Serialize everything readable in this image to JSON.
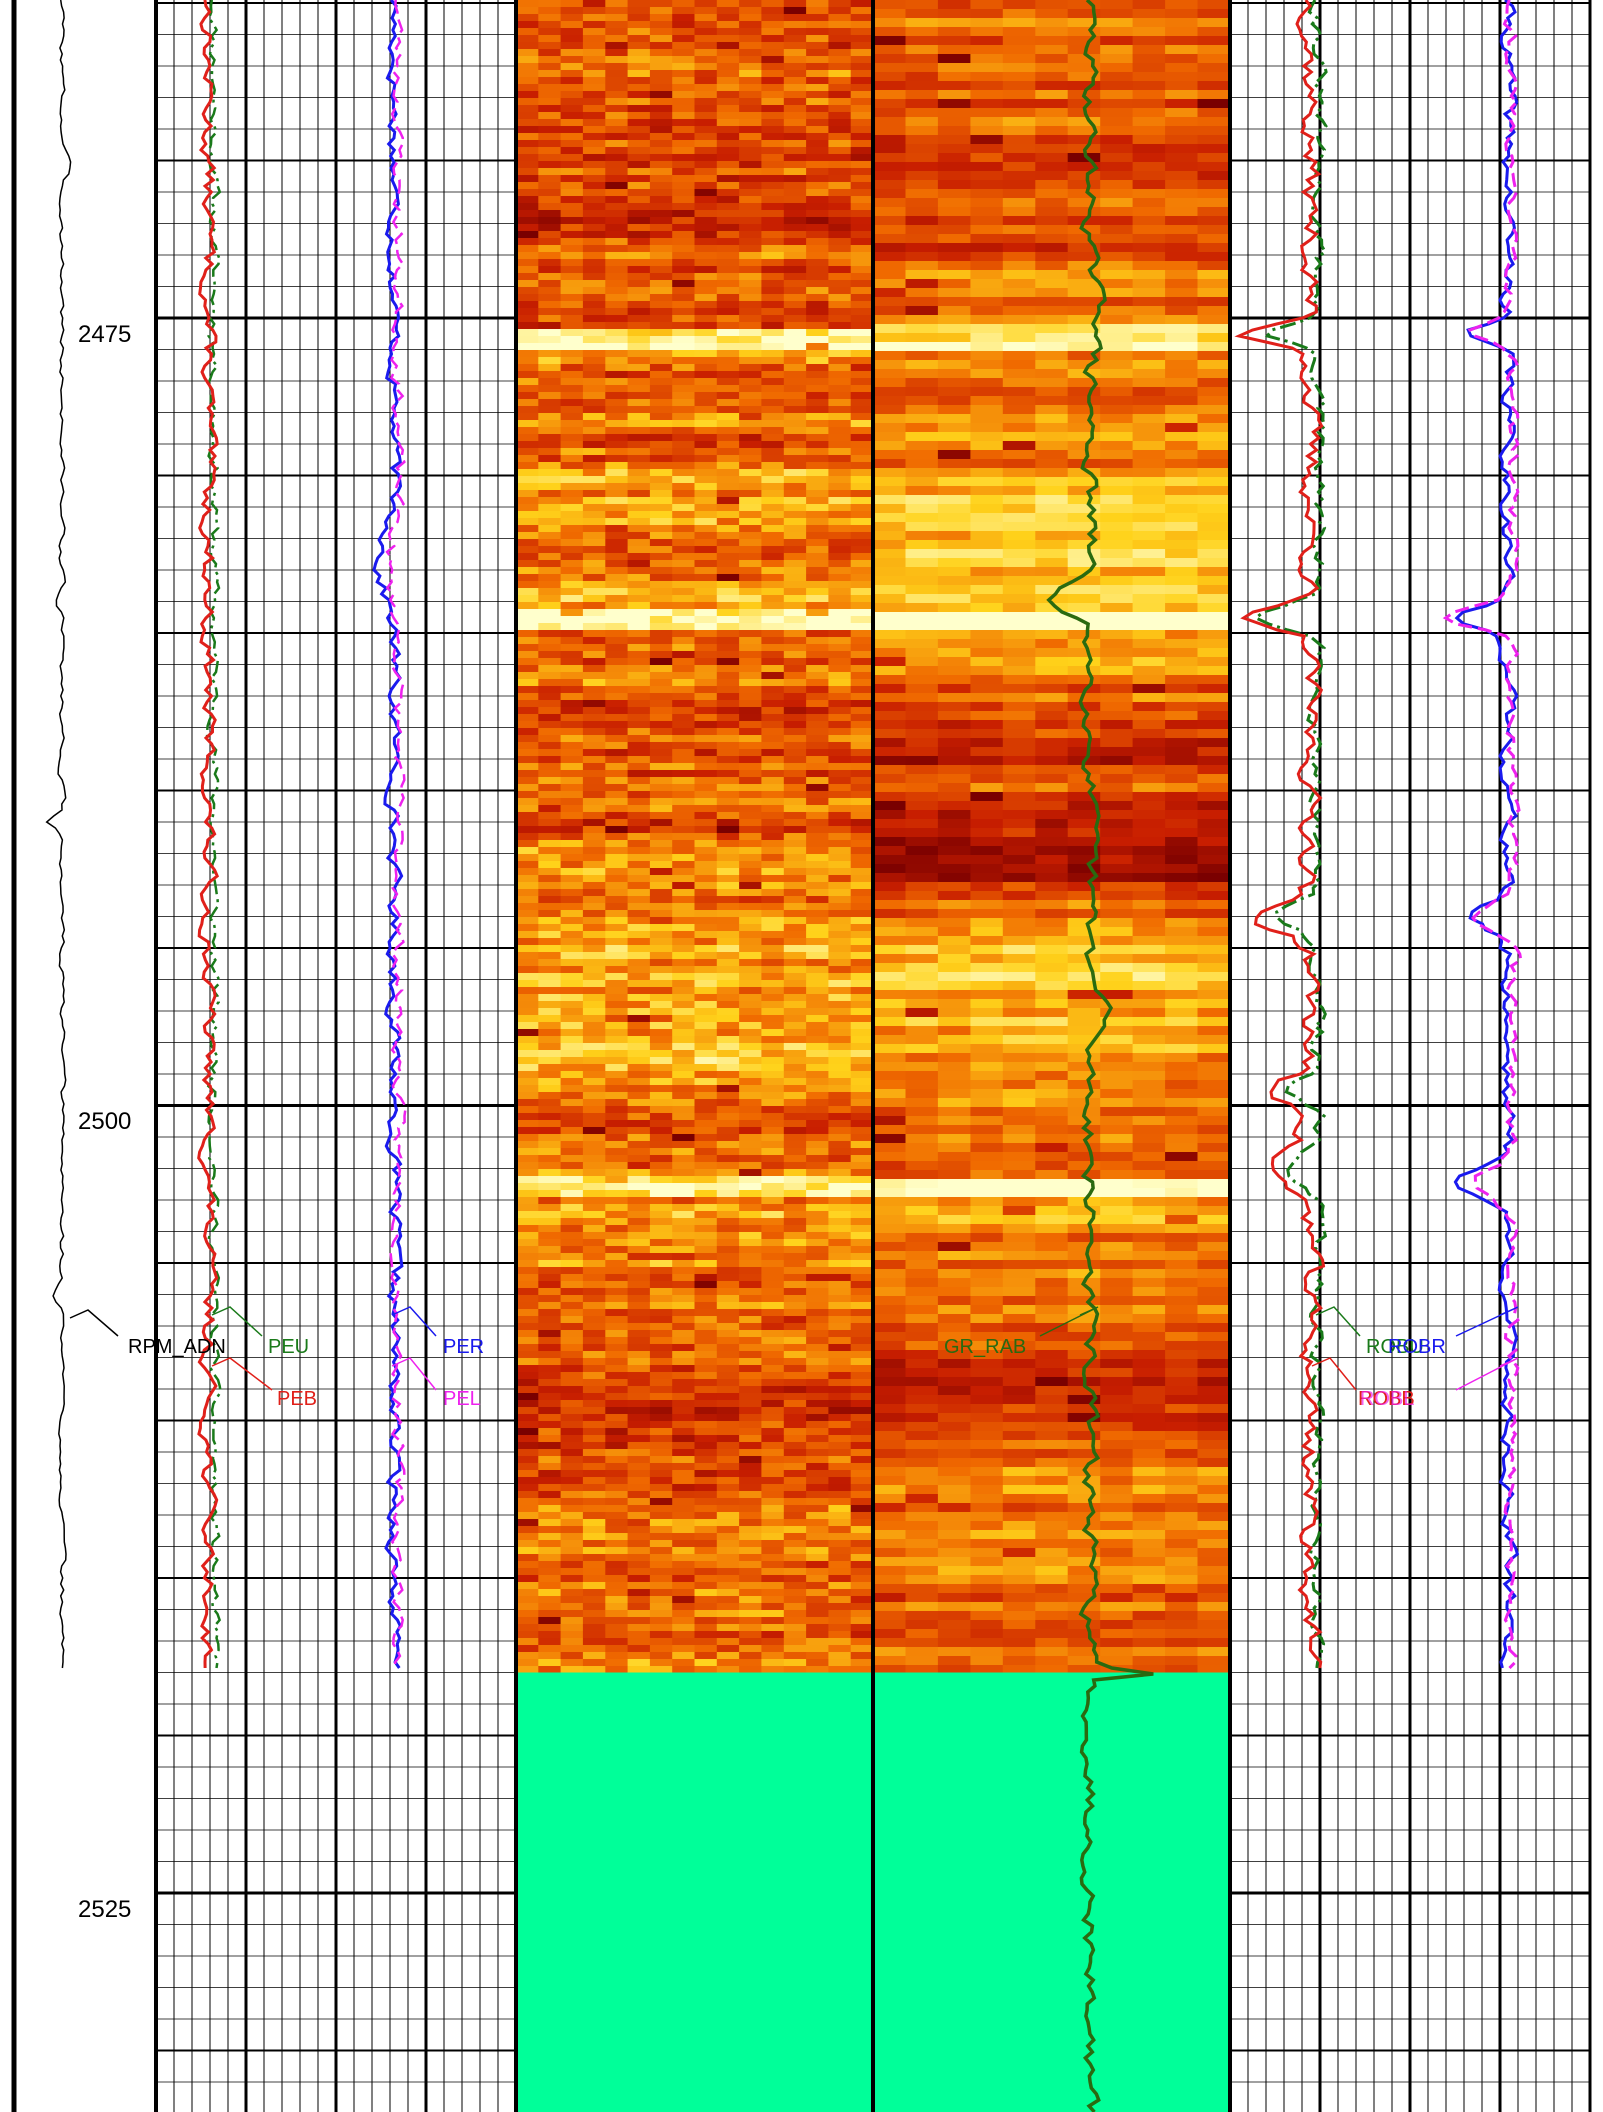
{
  "chart_data": {
    "type": "well-log",
    "depth_axis": {
      "tick_labels": [
        "2475",
        "2500",
        "2525"
      ],
      "major_ticks": [
        2475,
        2500,
        2525
      ],
      "minor_step": 5,
      "range": [
        2465,
        2531
      ]
    },
    "data_end_depth": 2518,
    "tracks": [
      {
        "name": "Track 1",
        "curves": [
          {
            "mnemonic": "RPM_ADN",
            "color": "#000000",
            "style": "solid"
          }
        ]
      },
      {
        "name": "Track 2",
        "curves": [
          {
            "mnemonic": "PEU",
            "color": "#1a7a1a",
            "style": "dash-dot"
          },
          {
            "mnemonic": "PEB",
            "color": "#e0201a",
            "style": "solid"
          }
        ]
      },
      {
        "name": "Track 3",
        "curves": [
          {
            "mnemonic": "PER",
            "color": "#1a1aee",
            "style": "solid"
          },
          {
            "mnemonic": "PEL",
            "color": "#ee22ee",
            "style": "dash"
          }
        ]
      },
      {
        "name": "Image A",
        "type": "image",
        "palette": [
          "#7a0000",
          "#c81e00",
          "#f06a00",
          "#ffd21a",
          "#ffffcc"
        ],
        "fill_color": "#00ff99"
      },
      {
        "name": "Image B",
        "type": "image",
        "palette": [
          "#7a0000",
          "#c81e00",
          "#f06a00",
          "#ffd21a",
          "#ffffcc"
        ],
        "fill_color": "#00ff99",
        "curves": [
          {
            "mnemonic": "GR_RAB",
            "color": "#2a6a10",
            "style": "solid"
          }
        ]
      },
      {
        "name": "Track 6",
        "curves": [
          {
            "mnemonic": "ROBU",
            "color": "#1a7a1a",
            "style": "dash-dot"
          },
          {
            "mnemonic": "ROBB",
            "color": "#e0201a",
            "style": "solid"
          }
        ]
      },
      {
        "name": "Track 7",
        "curves": [
          {
            "mnemonic": "ROBR",
            "color": "#1a1aee",
            "style": "solid"
          },
          {
            "mnemonic": "ROBL",
            "color": "#ee22ee",
            "style": "dash"
          }
        ]
      }
    ],
    "key_features": [
      {
        "depth": 2475.5,
        "description": "thin bright bed across image tracks"
      },
      {
        "depth": 2484.5,
        "description": "bright bed in Image B"
      },
      {
        "depth": 2502.5,
        "description": "bright bed in Image B"
      },
      {
        "depth": 2518,
        "description": "end of image data; tracks filled below"
      }
    ]
  },
  "labels": {
    "rpm": "RPM_ADN",
    "peu": "PEU",
    "peb": "PEB",
    "per": "PER",
    "pel": "PEL",
    "gr": "GR_RAB",
    "robu": "ROBU",
    "robb": "ROBB",
    "robr": "ROBR",
    "robl": "ROBL"
  }
}
